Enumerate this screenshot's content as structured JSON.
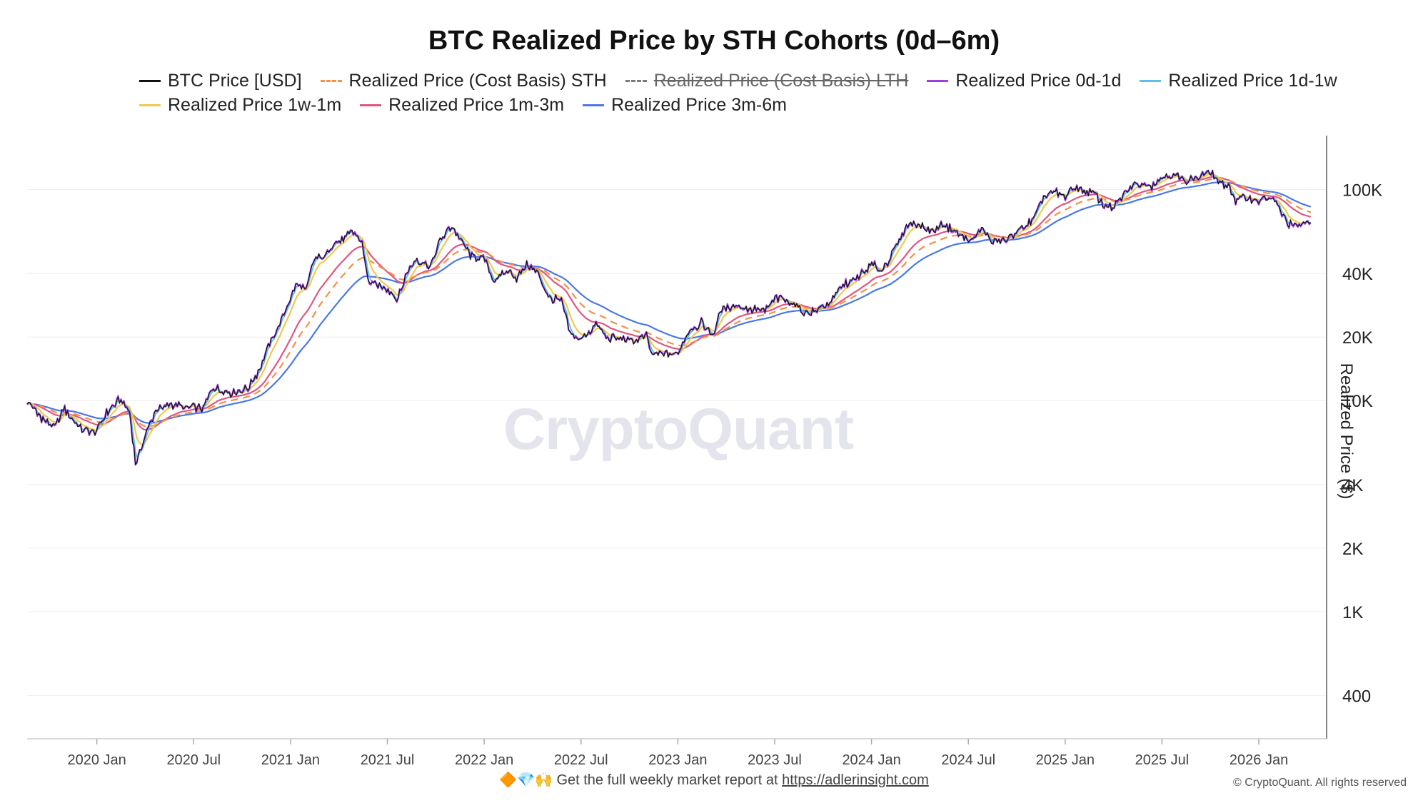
{
  "chart_data": {
    "type": "line",
    "title": "BTC Realized Price by STH Cohorts (0d–6m)",
    "ylabel": "Realized Price ($)",
    "yscale": "log",
    "ylim": [
      250,
      180000
    ],
    "yticks": [
      400,
      1000,
      2000,
      4000,
      10000,
      20000,
      40000,
      100000
    ],
    "ytick_labels": [
      "400",
      "1K",
      "2K",
      "4K",
      "10K",
      "20K",
      "40K",
      "100K"
    ],
    "xlim": [
      2019.64,
      2026.35
    ],
    "xticks": [
      2020.0,
      2020.5,
      2021.0,
      2021.5,
      2022.0,
      2022.5,
      2023.0,
      2023.5,
      2024.0,
      2024.5,
      2025.0,
      2025.5,
      2026.0
    ],
    "xtick_labels": [
      "2020 Jan",
      "2020 Jul",
      "2021 Jan",
      "2021 Jul",
      "2022 Jan",
      "2022 Jul",
      "2023 Jan",
      "2023 Jul",
      "2024 Jan",
      "2024 Jul",
      "2025 Jan",
      "2025 Jul",
      "2026 Jan"
    ],
    "legend_position": "top",
    "series": [
      {
        "name": "BTC Price [USD]",
        "color": "#111111",
        "dash": "solid",
        "visible": true
      },
      {
        "name": "Realized Price (Cost Basis) STH",
        "color": "#f0924a",
        "dash": "dashed",
        "visible": true
      },
      {
        "name": "Realized Price (Cost Basis) LTH",
        "color": "#7a7a7a",
        "dash": "dashdot",
        "visible": false
      },
      {
        "name": "Realized Price 0d-1d",
        "color": "#9c3fe0",
        "dash": "solid",
        "visible": true
      },
      {
        "name": "Realized Price 1d-1w",
        "color": "#5bbfe6",
        "dash": "solid",
        "visible": true
      },
      {
        "name": "Realized Price 1w-1m",
        "color": "#f2c94c",
        "dash": "solid",
        "visible": true
      },
      {
        "name": "Realized Price 1m-3m",
        "color": "#e0567e",
        "dash": "solid",
        "visible": true
      },
      {
        "name": "Realized Price 3m-6m",
        "color": "#4a78e8",
        "dash": "solid",
        "visible": true
      }
    ],
    "price_points": [
      [
        2019.64,
        10000
      ],
      [
        2019.7,
        8500
      ],
      [
        2019.78,
        7400
      ],
      [
        2019.83,
        9200
      ],
      [
        2019.92,
        7300
      ],
      [
        2020.0,
        7200
      ],
      [
        2020.05,
        8700
      ],
      [
        2020.12,
        10200
      ],
      [
        2020.17,
        8700
      ],
      [
        2020.2,
        5000
      ],
      [
        2020.24,
        6500
      ],
      [
        2020.3,
        8800
      ],
      [
        2020.38,
        9700
      ],
      [
        2020.45,
        9300
      ],
      [
        2020.55,
        9200
      ],
      [
        2020.6,
        11500
      ],
      [
        2020.7,
        10800
      ],
      [
        2020.78,
        11400
      ],
      [
        2020.83,
        13500
      ],
      [
        2020.88,
        17500
      ],
      [
        2020.95,
        23500
      ],
      [
        2021.03,
        36000
      ],
      [
        2021.08,
        33000
      ],
      [
        2021.12,
        47000
      ],
      [
        2021.18,
        48000
      ],
      [
        2021.22,
        56000
      ],
      [
        2021.28,
        58000
      ],
      [
        2021.32,
        63500
      ],
      [
        2021.37,
        56000
      ],
      [
        2021.4,
        37000
      ],
      [
        2021.45,
        35000
      ],
      [
        2021.5,
        34000
      ],
      [
        2021.55,
        30000
      ],
      [
        2021.6,
        40000
      ],
      [
        2021.65,
        47000
      ],
      [
        2021.72,
        43000
      ],
      [
        2021.77,
        57000
      ],
      [
        2021.83,
        67000
      ],
      [
        2021.88,
        58000
      ],
      [
        2021.93,
        48000
      ],
      [
        2022.0,
        47000
      ],
      [
        2022.05,
        37000
      ],
      [
        2022.12,
        41000
      ],
      [
        2022.17,
        38000
      ],
      [
        2022.22,
        44000
      ],
      [
        2022.28,
        40000
      ],
      [
        2022.33,
        31000
      ],
      [
        2022.4,
        29500
      ],
      [
        2022.45,
        20000
      ],
      [
        2022.5,
        19500
      ],
      [
        2022.58,
        23000
      ],
      [
        2022.63,
        20000
      ],
      [
        2022.7,
        19500
      ],
      [
        2022.78,
        19200
      ],
      [
        2022.84,
        20500
      ],
      [
        2022.86,
        16500
      ],
      [
        2022.95,
        16800
      ],
      [
        2023.0,
        16600
      ],
      [
        2023.05,
        21000
      ],
      [
        2023.12,
        23500
      ],
      [
        2023.18,
        20500
      ],
      [
        2023.23,
        27500
      ],
      [
        2023.3,
        28500
      ],
      [
        2023.38,
        27000
      ],
      [
        2023.45,
        26500
      ],
      [
        2023.5,
        30500
      ],
      [
        2023.58,
        29500
      ],
      [
        2023.65,
        26000
      ],
      [
        2023.72,
        26500
      ],
      [
        2023.8,
        30000
      ],
      [
        2023.85,
        35000
      ],
      [
        2023.92,
        37500
      ],
      [
        2024.0,
        44000
      ],
      [
        2024.05,
        41000
      ],
      [
        2024.12,
        52000
      ],
      [
        2024.18,
        67000
      ],
      [
        2024.22,
        70000
      ],
      [
        2024.3,
        63000
      ],
      [
        2024.38,
        68000
      ],
      [
        2024.45,
        61000
      ],
      [
        2024.52,
        57000
      ],
      [
        2024.58,
        66000
      ],
      [
        2024.62,
        56000
      ],
      [
        2024.7,
        58000
      ],
      [
        2024.78,
        66000
      ],
      [
        2024.84,
        72000
      ],
      [
        2024.88,
        90000
      ],
      [
        2024.93,
        97000
      ],
      [
        2025.0,
        94000
      ],
      [
        2025.05,
        104000
      ],
      [
        2025.1,
        98000
      ],
      [
        2025.15,
        96000
      ],
      [
        2025.2,
        84000
      ],
      [
        2025.25,
        82000
      ],
      [
        2025.3,
        94000
      ],
      [
        2025.35,
        104000
      ],
      [
        2025.4,
        106000
      ],
      [
        2025.45,
        105000
      ],
      [
        2025.52,
        118000
      ],
      [
        2025.58,
        115000
      ],
      [
        2025.63,
        110000
      ],
      [
        2025.68,
        113000
      ],
      [
        2025.75,
        121000
      ],
      [
        2025.8,
        108000
      ],
      [
        2025.85,
        102000
      ],
      [
        2025.88,
        88000
      ],
      [
        2025.93,
        92000
      ],
      [
        2026.0,
        89000
      ],
      [
        2026.05,
        92000
      ],
      [
        2026.1,
        84000
      ],
      [
        2026.14,
        71000
      ],
      [
        2026.18,
        67000
      ],
      [
        2026.23,
        69000
      ],
      [
        2026.27,
        68500
      ]
    ]
  },
  "footer": {
    "emojis": "🔶💎🙌",
    "text": "Get the full weekly market report at",
    "link": "https://adlerinsight.com"
  },
  "copyright": "© CryptoQuant. All rights reserved",
  "watermark": "CryptoQuant"
}
